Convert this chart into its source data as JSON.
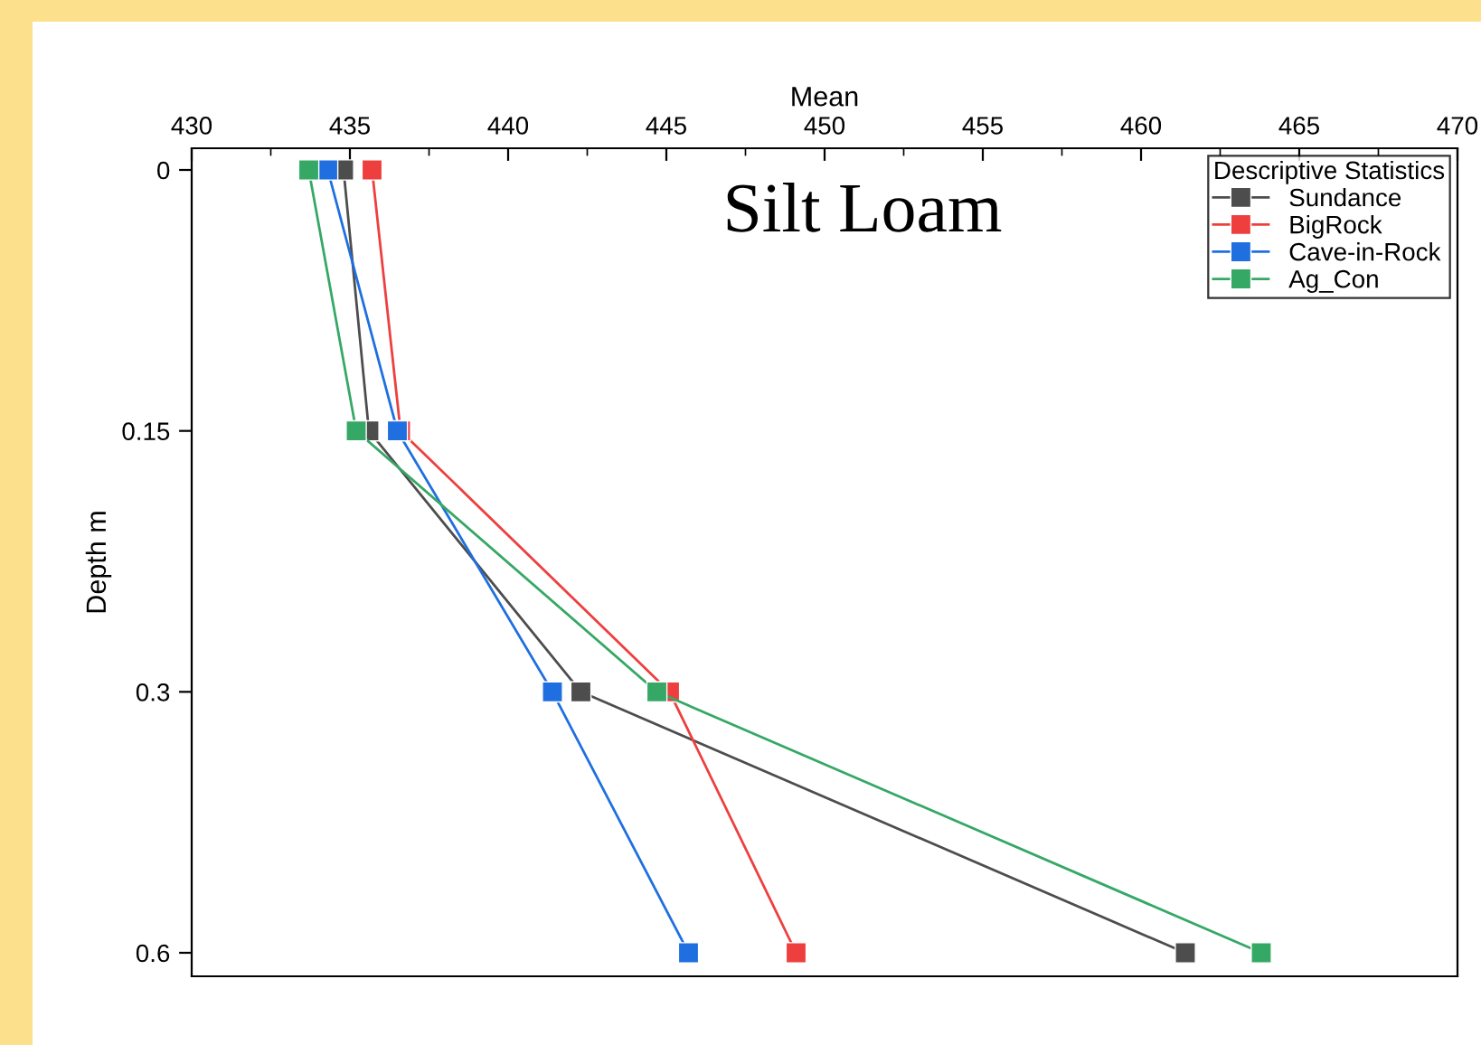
{
  "chart_data": {
    "type": "line",
    "orientation": "horizontal",
    "xlabel": "Mean",
    "ylabel": "Depth m",
    "legend_title": "Descriptive Statistics",
    "legend": "top right",
    "marker": "square",
    "line_style": "solid",
    "grid": false,
    "categories": [
      "0",
      "0.15",
      "0.3",
      "0.6"
    ],
    "xlim": [
      430,
      470
    ],
    "xticks": [
      430,
      435,
      440,
      445,
      450,
      455,
      460,
      465,
      470
    ],
    "annotations": [
      "Silt Loam"
    ],
    "series": [
      {
        "name": "Sundance",
        "color": "#4d4d4d",
        "values": [
          434.8,
          435.6,
          442.3,
          461.4
        ]
      },
      {
        "name": "BigRock",
        "color": "#ee3f3f",
        "values": [
          435.7,
          436.6,
          445.1,
          449.1
        ]
      },
      {
        "name": "Cave-in-Rock",
        "color": "#1f6fe0",
        "values": [
          434.3,
          436.5,
          441.4,
          445.7
        ]
      },
      {
        "name": "Ag_Con",
        "color": "#35a866",
        "values": [
          433.7,
          435.2,
          444.7,
          463.8
        ]
      }
    ]
  }
}
